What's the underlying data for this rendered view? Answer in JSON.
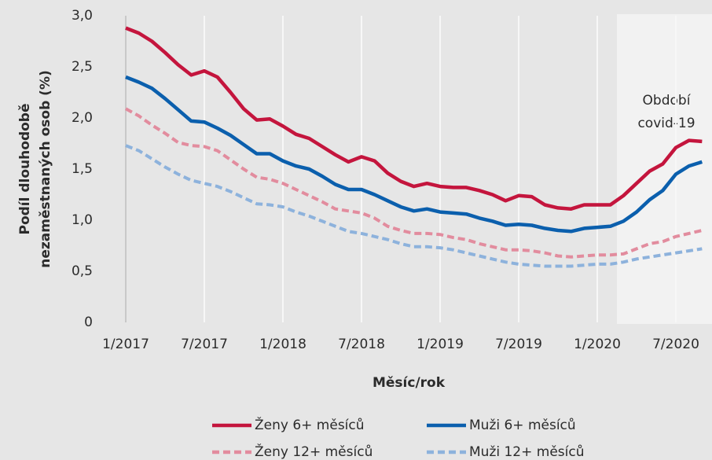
{
  "chart_data": {
    "type": "line",
    "ylabel": [
      "Podíl dlouhodobě",
      "nezaměstnaných osob (%)"
    ],
    "xlabel": "Měsíc/rok",
    "annotation": [
      "Období",
      "covid-19"
    ],
    "categories": [
      "1/2017",
      null,
      null,
      null,
      null,
      null,
      "7/2017",
      null,
      null,
      null,
      null,
      null,
      "1/2018",
      null,
      null,
      null,
      null,
      null,
      "7/2018",
      null,
      null,
      null,
      null,
      null,
      "1/2019",
      null,
      null,
      null,
      null,
      null,
      "7/2019",
      null,
      null,
      null,
      null,
      null,
      "1/2020",
      null,
      null,
      null,
      null,
      null,
      "7/2020",
      null,
      null
    ],
    "ylim": [
      0,
      3
    ],
    "yticks": [
      0,
      {
        "value": 0.5,
        "label": "0,5"
      },
      {
        "value": 1,
        "label": "1,0"
      },
      {
        "value": 1.5,
        "label": "1,5"
      },
      {
        "value": 2,
        "label": "2,0"
      },
      {
        "value": 2.5,
        "label": "2,5"
      },
      {
        "value": 3,
        "label": "3,0"
      }
    ],
    "legend": "bottom",
    "series": [
      {
        "name": "Ženy 6+ měsíců",
        "color": "#c4153d",
        "dashed": false,
        "values": [
          2.88,
          2.83,
          2.75,
          2.64,
          2.52,
          2.42,
          2.46,
          2.4,
          2.25,
          2.09,
          1.98,
          1.99,
          1.92,
          1.84,
          1.8,
          1.72,
          1.64,
          1.57,
          1.62,
          1.58,
          1.46,
          1.38,
          1.33,
          1.36,
          1.33,
          1.32,
          1.32,
          1.29,
          1.25,
          1.19,
          1.24,
          1.23,
          1.15,
          1.12,
          1.11,
          1.15,
          1.15,
          1.15,
          1.24,
          1.36,
          1.48,
          1.55,
          1.71,
          1.78,
          1.77
        ]
      },
      {
        "name": "Muži 6+ měsíců",
        "color": "#0b5fad",
        "dashed": false,
        "values": [
          2.4,
          2.35,
          2.29,
          2.19,
          2.08,
          1.97,
          1.96,
          1.9,
          1.83,
          1.74,
          1.65,
          1.65,
          1.58,
          1.53,
          1.5,
          1.43,
          1.35,
          1.3,
          1.3,
          1.25,
          1.19,
          1.13,
          1.09,
          1.11,
          1.08,
          1.07,
          1.06,
          1.02,
          0.99,
          0.95,
          0.96,
          0.95,
          0.92,
          0.9,
          0.89,
          0.92,
          0.93,
          0.94,
          0.99,
          1.08,
          1.2,
          1.29,
          1.45,
          1.53,
          1.57
        ]
      },
      {
        "name": "Ženy 12+ měsíců",
        "color": "#e28c9e",
        "dashed": true,
        "values": [
          2.09,
          2.02,
          1.93,
          1.85,
          1.76,
          1.73,
          1.72,
          1.68,
          1.59,
          1.5,
          1.42,
          1.4,
          1.36,
          1.3,
          1.24,
          1.18,
          1.11,
          1.09,
          1.07,
          1.02,
          0.94,
          0.9,
          0.87,
          0.87,
          0.86,
          0.83,
          0.81,
          0.77,
          0.74,
          0.71,
          0.71,
          0.7,
          0.68,
          0.65,
          0.64,
          0.65,
          0.66,
          0.66,
          0.67,
          0.72,
          0.77,
          0.79,
          0.84,
          0.87,
          0.9
        ]
      },
      {
        "name": "Muži 12+ měsíců",
        "color": "#8db2dc",
        "dashed": true,
        "values": [
          1.73,
          1.68,
          1.6,
          1.52,
          1.45,
          1.39,
          1.36,
          1.33,
          1.28,
          1.22,
          1.16,
          1.15,
          1.13,
          1.08,
          1.04,
          0.99,
          0.94,
          0.89,
          0.87,
          0.84,
          0.81,
          0.77,
          0.74,
          0.74,
          0.73,
          0.71,
          0.68,
          0.65,
          0.62,
          0.59,
          0.57,
          0.56,
          0.55,
          0.55,
          0.55,
          0.56,
          0.57,
          0.57,
          0.59,
          0.62,
          0.64,
          0.66,
          0.68,
          0.7,
          0.72
        ]
      }
    ]
  }
}
